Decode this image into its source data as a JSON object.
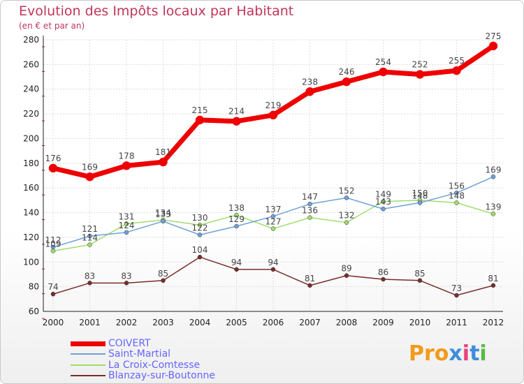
{
  "title": "Evolution des Impôts locaux par Habitant",
  "subtitle": "(en € et par an)",
  "logo_text": "Proxiti",
  "colors": {
    "title": "#c0355a",
    "COIVERT": "#ee0000",
    "Saint-Martial": "#6fa0d8",
    "La Croix-Comtesse": "#9fdc6e",
    "Blanzay-sur-Boutonne": "#7a2d2d",
    "legend_text": "#6565ff"
  },
  "chart_data": {
    "type": "line",
    "title": "Evolution des Impôts locaux par Habitant",
    "ylabel": "(en € et par an)",
    "xlabel": "",
    "x": [
      "2000",
      "2001",
      "2002",
      "2003",
      "2004",
      "2005",
      "2006",
      "2007",
      "2008",
      "2009",
      "2010",
      "2011",
      "2012"
    ],
    "ylim": [
      60,
      280
    ],
    "yticks": [
      60,
      80,
      100,
      120,
      140,
      160,
      180,
      200,
      220,
      240,
      260,
      280
    ],
    "grid": true,
    "legend_position": "bottom-left",
    "series": [
      {
        "name": "COIVERT",
        "values": [
          176,
          169,
          178,
          181,
          215,
          214,
          219,
          238,
          246,
          254,
          252,
          255,
          275
        ]
      },
      {
        "name": "Saint-Martial",
        "values": [
          112,
          121,
          124,
          133,
          122,
          129,
          137,
          147,
          152,
          143,
          148,
          156,
          169
        ]
      },
      {
        "name": "La Croix-Comtesse",
        "values": [
          109,
          114,
          131,
          134,
          130,
          138,
          127,
          136,
          132,
          149,
          150,
          148,
          139
        ]
      },
      {
        "name": "Blanzay-sur-Boutonne",
        "values": [
          74,
          83,
          83,
          85,
          104,
          94,
          94,
          81,
          89,
          86,
          85,
          73,
          81
        ]
      }
    ]
  }
}
